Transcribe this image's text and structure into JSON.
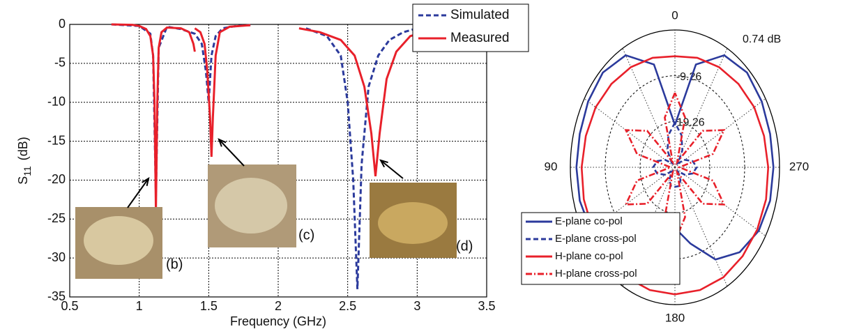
{
  "chart_data": [
    {
      "type": "line",
      "xlabel": "Frequency (GHz)",
      "ylabel": {
        "symbol": "S",
        "subscript": "11",
        "unit": "(dB)"
      },
      "xlim": [
        0.5,
        3.5
      ],
      "ylim": [
        -35,
        0
      ],
      "xticks": [
        0.5,
        1,
        1.5,
        2,
        2.5,
        3,
        3.5
      ],
      "yticks": [
        -35,
        -30,
        -25,
        -20,
        -15,
        -10,
        -5,
        0
      ],
      "grid": true,
      "legend": "upper right",
      "annotations": [
        "(b)",
        "(c)",
        "(d)"
      ],
      "series": [
        {
          "name": "Simulated",
          "color": "#2b3a9c",
          "style": "dashed",
          "x": [
            0.8,
            1.0,
            1.08,
            1.1,
            1.12,
            1.14,
            1.2,
            1.3,
            1.4,
            1.45,
            1.48,
            1.5,
            1.52,
            1.55,
            1.6,
            1.7,
            1.8,
            2.0,
            2.2,
            2.35,
            2.45,
            2.5,
            2.54,
            2.57,
            2.6,
            2.65,
            2.72,
            2.8,
            2.9,
            3.0,
            3.1
          ],
          "values": [
            0,
            -0.2,
            -1.2,
            -4,
            -22,
            -3,
            -0.3,
            -0.6,
            -1.2,
            -2.5,
            -6,
            -10,
            -4,
            -1.5,
            -0.5,
            -0.2,
            -0.1,
            null,
            -0.5,
            -1.5,
            -4,
            -10,
            -20,
            -34,
            -18,
            -8,
            -4,
            -2,
            -1,
            -0.5,
            -0.3
          ]
        },
        {
          "name": "Measured",
          "color": "#e8202a",
          "style": "solid",
          "x": [
            0.8,
            0.95,
            1.0,
            1.05,
            1.08,
            1.1,
            1.11,
            1.12,
            1.13,
            1.14,
            1.16,
            1.2,
            1.3,
            1.36,
            1.39,
            1.4,
            1.4,
            1.4,
            1.44,
            1.47,
            1.49,
            1.51,
            1.52,
            1.53,
            1.55,
            1.58,
            1.65,
            1.8,
            2.0,
            2.15,
            2.3,
            2.45,
            2.55,
            2.62,
            2.67,
            2.7,
            2.73,
            2.78,
            2.85,
            2.95,
            3.1,
            3.3
          ],
          "values": [
            0,
            -0.05,
            -0.2,
            -0.6,
            -1.5,
            -4,
            -10,
            -24,
            -10,
            -3,
            -1,
            -0.4,
            -0.5,
            -1,
            -2.5,
            -3.5,
            null,
            -0.5,
            -1,
            -2.5,
            -6,
            -12,
            -17,
            -12,
            -4,
            -1,
            -0.3,
            -0.1,
            null,
            -0.5,
            -1,
            -2,
            -4,
            -8,
            -14,
            -19.5,
            -14,
            -7,
            -3.5,
            -1.5,
            -0.7,
            -0.3
          ]
        }
      ]
    },
    {
      "type": "polar",
      "rlim": [
        -29.26,
        0.74
      ],
      "rticks": [
        -19.26,
        -9.26,
        {
          "value": 0.74,
          "label": "0.74 dB"
        }
      ],
      "theta_ticks": [
        0,
        90,
        180,
        270
      ],
      "grid": true,
      "legend": "lower left",
      "series": [
        {
          "name": "E-plane co-pol",
          "color": "#2b3a9c",
          "style": "solid",
          "theta": [
            0,
            15,
            30,
            45,
            60,
            75,
            90,
            105,
            120,
            135,
            150,
            165,
            180,
            195,
            210,
            225,
            240,
            255,
            270,
            285,
            300,
            315,
            330,
            345,
            360
          ],
          "r": [
            -20,
            -6,
            -1,
            0,
            -0.5,
            -1,
            -1,
            -1,
            -1.5,
            -3,
            -6,
            -12,
            -16,
            -12,
            -6,
            -3,
            -1.5,
            -1,
            -1,
            -1,
            -0.5,
            0,
            -1,
            -6,
            -20
          ]
        },
        {
          "name": "E-plane cross-pol",
          "color": "#2b3a9c",
          "style": "dashed",
          "theta": [
            0,
            15,
            30,
            45,
            60,
            75,
            90,
            105,
            120,
            135,
            150,
            165,
            180,
            195,
            210,
            225,
            240,
            255,
            270,
            285,
            300,
            315,
            330,
            345,
            360
          ],
          "r": [
            -19.5,
            -22,
            -25,
            -28,
            -26,
            -24,
            -23,
            -24,
            -26,
            -28,
            -26,
            -25,
            -25,
            -25,
            -26,
            -28,
            -26,
            -24,
            -23,
            -24,
            -26,
            -28,
            -25,
            -22,
            -19.5
          ]
        },
        {
          "name": "H-plane co-pol",
          "color": "#e8202a",
          "style": "solid",
          "theta": [
            0,
            15,
            30,
            45,
            60,
            75,
            90,
            105,
            120,
            135,
            150,
            165,
            180,
            195,
            210,
            225,
            240,
            255,
            270,
            285,
            300,
            315,
            330,
            345,
            360
          ],
          "r": [
            -5,
            -4.5,
            -4,
            -3.5,
            -3,
            -2.8,
            -2.5,
            -2.2,
            -2,
            -1.8,
            -1.5,
            -1.5,
            -1.5,
            -1.5,
            -1.5,
            -1.8,
            -2,
            -2.2,
            -2.5,
            -2.8,
            -3,
            -3.5,
            -4,
            -4.5,
            -5
          ]
        },
        {
          "name": "H-plane cross-pol",
          "color": "#e8202a",
          "style": "dashdot",
          "theta": [
            0,
            15,
            30,
            45,
            60,
            75,
            90,
            105,
            120,
            135,
            150,
            165,
            180,
            195,
            210,
            225,
            240,
            255,
            270,
            285,
            300,
            315,
            330,
            345,
            360
          ],
          "r": [
            -13,
            -18,
            -28,
            -18,
            -13,
            -18,
            -28,
            -18,
            -13,
            -18,
            -28,
            -18,
            -13,
            -18,
            -28,
            -18,
            -13,
            -18,
            -28,
            -18,
            -13,
            -18,
            -28,
            -18,
            -13
          ]
        }
      ]
    }
  ]
}
